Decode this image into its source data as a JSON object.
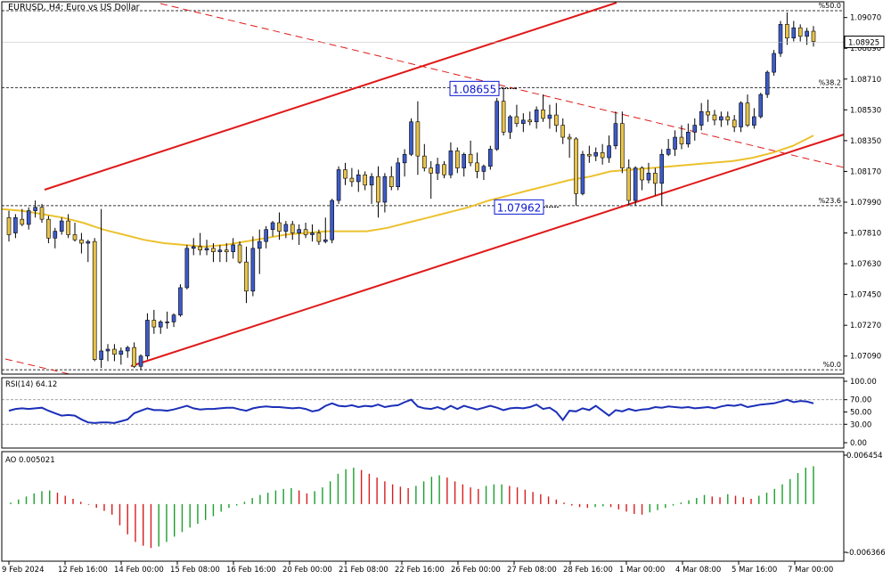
{
  "header": {
    "symbol": "EURUSD",
    "timeframe": "H4",
    "description": "Euro vs US Dollar",
    "full": "EURUSD, H4:  Euro vs US Dollar"
  },
  "colors": {
    "bull": "#3d5bc8",
    "bear": "#e8c34a",
    "ma": "#ecc12e",
    "channel": "#e01919",
    "rsi_line": "#1b2fb8",
    "ao_up": "#1a9e2c",
    "ao_down": "#d81c1c",
    "price_tag": "#0a15d0"
  },
  "chart_data": [
    {
      "type": "candlestick",
      "panel": "price",
      "ylim": [
        1.07,
        1.0911
      ],
      "y_ticks": [
        "1.09070",
        "1.08890",
        "1.08710",
        "1.08530",
        "1.08350",
        "1.08170",
        "1.07990",
        "1.07810",
        "1.07630",
        "1.07450",
        "1.07270",
        "1.07090"
      ],
      "x_labels": [
        "9 Feb 2024",
        "12 Feb 16:00",
        "14 Feb 00:00",
        "15 Feb 08:00",
        "16 Feb 16:00",
        "20 Feb 00:00",
        "21 Feb 08:00",
        "22 Feb 16:00",
        "26 Feb 00:00",
        "27 Feb 08:00",
        "28 Feb 16:00",
        "1 Mar 00:00",
        "4 Mar 08:00",
        "5 Mar 16:00",
        "7 Mar 00:00"
      ],
      "current_price": "1.08925",
      "fib_levels": [
        {
          "label": "%50.0",
          "value": 1.0911
        },
        {
          "label": "%38.2",
          "value": 1.0866
        },
        {
          "label": "%23.6",
          "value": 1.0797
        },
        {
          "label": "%0.0",
          "value": 1.0701
        }
      ],
      "annotations": [
        {
          "text": "1.08655",
          "value": 1.08655
        },
        {
          "text": "1.07962",
          "value": 1.07962
        }
      ],
      "ma_period_values": [
        1.0795,
        1.0794,
        1.0792,
        1.079,
        1.0787,
        1.0783,
        1.078,
        1.0777,
        1.0775,
        1.0774,
        1.0773,
        1.0774,
        1.0776,
        1.0778,
        1.078,
        1.0781,
        1.0782,
        1.0782,
        1.0782,
        1.0784,
        1.0787,
        1.079,
        1.0793,
        1.0796,
        1.08,
        1.0803,
        1.0806,
        1.0809,
        1.0812,
        1.0814,
        1.0817,
        1.0818,
        1.0819,
        1.082,
        1.0821,
        1.0822,
        1.0823,
        1.0825,
        1.0828,
        1.0832,
        1.0838
      ],
      "candles": [
        [
          1.079,
          1.0794,
          1.0776,
          1.078
        ],
        [
          1.0781,
          1.0792,
          1.0778,
          1.079
        ],
        [
          1.0789,
          1.0795,
          1.0785,
          1.0786
        ],
        [
          1.0786,
          1.0796,
          1.0783,
          1.0794
        ],
        [
          1.0794,
          1.08,
          1.079,
          1.0796
        ],
        [
          1.0796,
          1.0798,
          1.0787,
          1.0789
        ],
        [
          1.0789,
          1.0791,
          1.0775,
          1.0778
        ],
        [
          1.0778,
          1.0784,
          1.0772,
          1.0782
        ],
        [
          1.0782,
          1.079,
          1.078,
          1.0788
        ],
        [
          1.0788,
          1.0792,
          1.0778,
          1.078
        ],
        [
          1.078,
          1.0787,
          1.0776,
          1.0777
        ],
        [
          1.0777,
          1.0781,
          1.0769,
          1.0775
        ],
        [
          1.0775,
          1.0777,
          1.0764,
          1.0776
        ],
        [
          1.0776,
          1.0778,
          1.0706,
          1.0707
        ],
        [
          1.0707,
          1.0795,
          1.0702,
          1.0712
        ],
        [
          1.0712,
          1.0716,
          1.0706,
          1.0713
        ],
        [
          1.0713,
          1.0716,
          1.0706,
          1.071
        ],
        [
          1.071,
          1.0714,
          1.0704,
          1.0712
        ],
        [
          1.0712,
          1.0715,
          1.0708,
          1.0714
        ],
        [
          1.0714,
          1.0717,
          1.0702,
          1.0703
        ],
        [
          1.0703,
          1.071,
          1.0701,
          1.0709
        ],
        [
          1.0709,
          1.0734,
          1.0707,
          1.073
        ],
        [
          1.073,
          1.0736,
          1.0722,
          1.0726
        ],
        [
          1.0726,
          1.073,
          1.0722,
          1.0729
        ],
        [
          1.0729,
          1.0735,
          1.0725,
          1.0729
        ],
        [
          1.0729,
          1.0734,
          1.0726,
          1.0733
        ],
        [
          1.0733,
          1.0751,
          1.0732,
          1.0749
        ],
        [
          1.0749,
          1.0774,
          1.0748,
          1.0772
        ],
        [
          1.0772,
          1.0778,
          1.0768,
          1.0773
        ],
        [
          1.0773,
          1.0781,
          1.0768,
          1.0771
        ],
        [
          1.0771,
          1.0777,
          1.0768,
          1.0772
        ],
        [
          1.0772,
          1.0775,
          1.0764,
          1.077
        ],
        [
          1.077,
          1.0774,
          1.0764,
          1.0771
        ],
        [
          1.0771,
          1.0775,
          1.0764,
          1.077
        ],
        [
          1.077,
          1.0778,
          1.0766,
          1.0774
        ],
        [
          1.0774,
          1.0776,
          1.0763,
          1.0764
        ],
        [
          1.0764,
          1.0773,
          1.074,
          1.0747
        ],
        [
          1.0747,
          1.0779,
          1.0744,
          1.0772
        ],
        [
          1.0772,
          1.0783,
          1.0757,
          1.0776
        ],
        [
          1.0776,
          1.0785,
          1.0772,
          1.0783
        ],
        [
          1.0783,
          1.0788,
          1.0779,
          1.0787
        ],
        [
          1.0787,
          1.0793,
          1.0777,
          1.0782
        ],
        [
          1.0782,
          1.0788,
          1.0778,
          1.0786
        ],
        [
          1.0786,
          1.0788,
          1.0777,
          1.0781
        ],
        [
          1.0781,
          1.0786,
          1.0774,
          1.0783
        ],
        [
          1.0783,
          1.0787,
          1.0778,
          1.078
        ],
        [
          1.078,
          1.0786,
          1.0776,
          1.0781
        ],
        [
          1.0781,
          1.0783,
          1.0774,
          1.0776
        ],
        [
          1.0776,
          1.079,
          1.0775,
          1.0777
        ],
        [
          1.0777,
          1.0801,
          1.0775,
          1.08
        ],
        [
          1.08,
          1.082,
          1.0798,
          1.0818
        ],
        [
          1.0818,
          1.0822,
          1.0809,
          1.0813
        ],
        [
          1.0813,
          1.0819,
          1.0808,
          1.0811
        ],
        [
          1.0811,
          1.0818,
          1.0805,
          1.0815
        ],
        [
          1.0815,
          1.0817,
          1.0806,
          1.0809
        ],
        [
          1.0809,
          1.0816,
          1.0798,
          1.0814
        ],
        [
          1.0814,
          1.082,
          1.079,
          1.0799
        ],
        [
          1.0799,
          1.0816,
          1.0793,
          1.0814
        ],
        [
          1.0814,
          1.082,
          1.0806,
          1.0808
        ],
        [
          1.0808,
          1.0825,
          1.0806,
          1.0822
        ],
        [
          1.0822,
          1.083,
          1.0814,
          1.0827
        ],
        [
          1.0827,
          1.0848,
          1.0826,
          1.0846
        ],
        [
          1.0846,
          1.0858,
          1.0815,
          1.0826
        ],
        [
          1.0826,
          1.0833,
          1.0817,
          1.0819
        ],
        [
          1.0819,
          1.0823,
          1.0801,
          1.0816
        ],
        [
          1.0816,
          1.0825,
          1.0812,
          1.0821
        ],
        [
          1.0821,
          1.0823,
          1.0813,
          1.0815
        ],
        [
          1.0815,
          1.0834,
          1.0813,
          1.0829
        ],
        [
          1.0829,
          1.0831,
          1.0816,
          1.0819
        ],
        [
          1.0819,
          1.0828,
          1.0814,
          1.0827
        ],
        [
          1.0827,
          1.0835,
          1.082,
          1.0822
        ],
        [
          1.0822,
          1.0828,
          1.0813,
          1.0817
        ],
        [
          1.0817,
          1.0821,
          1.0812,
          1.082
        ],
        [
          1.082,
          1.0832,
          1.0818,
          1.083
        ],
        [
          1.083,
          1.086,
          1.0829,
          1.0858
        ],
        [
          1.0858,
          1.0866,
          1.0838,
          1.084
        ],
        [
          1.084,
          1.085,
          1.0836,
          1.0849
        ],
        [
          1.0849,
          1.0856,
          1.0843,
          1.0845
        ],
        [
          1.0845,
          1.0851,
          1.084,
          1.0847
        ],
        [
          1.0847,
          1.0852,
          1.0844,
          1.0846
        ],
        [
          1.0846,
          1.0855,
          1.0842,
          1.0853
        ],
        [
          1.0853,
          1.0862,
          1.0846,
          1.0848
        ],
        [
          1.0848,
          1.0856,
          1.0842,
          1.085
        ],
        [
          1.085,
          1.0857,
          1.084,
          1.0844
        ],
        [
          1.0844,
          1.0848,
          1.0833,
          1.0837
        ],
        [
          1.0837,
          1.0839,
          1.0825,
          1.0836
        ],
        [
          1.0836,
          1.0837,
          1.0797,
          1.0804
        ],
        [
          1.0804,
          1.0829,
          1.0803,
          1.0827
        ],
        [
          1.0827,
          1.0832,
          1.0822,
          1.0826
        ],
        [
          1.0826,
          1.0831,
          1.0823,
          1.0828
        ],
        [
          1.0828,
          1.0833,
          1.0821,
          1.0825
        ],
        [
          1.0825,
          1.0838,
          1.0822,
          1.0832
        ],
        [
          1.0832,
          1.0852,
          1.083,
          1.0845
        ],
        [
          1.0845,
          1.0852,
          1.0816,
          1.0819
        ],
        [
          1.0819,
          1.0824,
          1.0797,
          1.08
        ],
        [
          1.08,
          1.082,
          1.0797,
          1.0819
        ],
        [
          1.0819,
          1.082,
          1.0806,
          1.0812
        ],
        [
          1.0812,
          1.0822,
          1.081,
          1.0816
        ],
        [
          1.0816,
          1.0819,
          1.0803,
          1.081
        ],
        [
          1.081,
          1.083,
          1.0797,
          1.0827
        ],
        [
          1.0827,
          1.0836,
          1.0826,
          1.083
        ],
        [
          1.083,
          1.0841,
          1.0826,
          1.0837
        ],
        [
          1.0837,
          1.0844,
          1.083,
          1.0833
        ],
        [
          1.0833,
          1.0845,
          1.0831,
          1.084
        ],
        [
          1.084,
          1.0848,
          1.0835,
          1.0844
        ],
        [
          1.0844,
          1.0857,
          1.0841,
          1.0852
        ],
        [
          1.0852,
          1.0859,
          1.0846,
          1.085
        ],
        [
          1.085,
          1.0853,
          1.0844,
          1.0847
        ],
        [
          1.0847,
          1.0852,
          1.0843,
          1.0849
        ],
        [
          1.0849,
          1.0852,
          1.0844,
          1.0847
        ],
        [
          1.0847,
          1.085,
          1.084,
          1.0843
        ],
        [
          1.0843,
          1.0858,
          1.084,
          1.0857
        ],
        [
          1.0857,
          1.0862,
          1.0843,
          1.0844
        ],
        [
          1.0844,
          1.0854,
          1.0842,
          1.0849
        ],
        [
          1.0849,
          1.0863,
          1.0848,
          1.0862
        ],
        [
          1.0862,
          1.0876,
          1.086,
          1.0875
        ],
        [
          1.0875,
          1.0888,
          1.0873,
          1.0886
        ],
        [
          1.0886,
          1.0905,
          1.0884,
          1.0903
        ],
        [
          1.0903,
          1.091,
          1.0891,
          1.0895
        ],
        [
          1.0895,
          1.0905,
          1.0893,
          1.0901
        ],
        [
          1.0901,
          1.0903,
          1.0893,
          1.0896
        ],
        [
          1.0896,
          1.0901,
          1.0891,
          1.0899
        ],
        [
          1.0899,
          1.0902,
          1.089,
          1.0893
        ]
      ]
    },
    {
      "type": "line",
      "panel": "rsi",
      "title": "RSI(14) 64.12",
      "ylim": [
        0,
        100
      ],
      "y_ticks": [
        "100.00",
        "70.00",
        "50.00",
        "30.00",
        "0.00"
      ],
      "values": [
        52,
        55,
        56,
        55,
        56,
        57,
        52,
        48,
        44,
        45,
        44,
        38,
        33,
        32,
        33,
        33,
        32,
        35,
        38,
        48,
        52,
        56,
        53,
        53,
        52,
        54,
        57,
        60,
        56,
        54,
        55,
        55,
        56,
        57,
        57,
        54,
        52,
        56,
        58,
        59,
        58,
        58,
        57,
        56,
        57,
        55,
        51,
        53,
        60,
        64,
        60,
        59,
        61,
        58,
        60,
        59,
        62,
        58,
        60,
        61,
        66,
        70,
        59,
        56,
        55,
        58,
        54,
        60,
        55,
        60,
        57,
        54,
        57,
        60,
        57,
        53,
        56,
        57,
        56,
        58,
        62,
        55,
        57,
        50,
        37,
        52,
        51,
        56,
        53,
        60,
        52,
        44,
        53,
        51,
        55,
        52,
        54,
        55,
        58,
        57,
        59,
        58,
        57,
        58,
        56,
        57,
        58,
        56,
        59,
        61,
        60,
        62,
        58,
        60,
        62,
        63,
        64,
        67,
        70,
        66,
        68,
        67,
        64
      ]
    },
    {
      "type": "bar",
      "panel": "ao",
      "title": "AO 0.005021",
      "ylim": [
        -0.006366,
        0.006454
      ],
      "y_ticks": [
        "0.006454",
        "-0.006366"
      ],
      "values": [
        0.0002,
        0.0006,
        0.001,
        0.0014,
        0.0017,
        0.0018,
        0.0015,
        0.0011,
        0.0007,
        0.0003,
        -0.0001,
        -0.0005,
        -0.0009,
        -0.0014,
        -0.0028,
        -0.004,
        -0.005,
        -0.0055,
        -0.0058,
        -0.0056,
        -0.005,
        -0.0043,
        -0.0037,
        -0.0031,
        -0.0026,
        -0.0021,
        -0.0016,
        -0.001,
        -0.0005,
        -0.0002,
        0.0003,
        0.0008,
        0.0012,
        0.0015,
        0.0018,
        0.002,
        0.0021,
        0.0018,
        0.0014,
        0.0017,
        0.0022,
        0.003,
        0.004,
        0.0046,
        0.0048,
        0.0045,
        0.004,
        0.0035,
        0.003,
        0.0026,
        0.0023,
        0.0021,
        0.0024,
        0.003,
        0.0036,
        0.0038,
        0.0035,
        0.003,
        0.0026,
        0.0022,
        0.002,
        0.0024,
        0.0026,
        0.0026,
        0.0024,
        0.0022,
        0.0019,
        0.0016,
        0.0013,
        0.001,
        0.0006,
        0.0002,
        -0.0002,
        -0.0004,
        -0.0005,
        -0.0004,
        -0.0003,
        -0.0004,
        -0.0007,
        -0.001,
        -0.0013,
        -0.0014,
        -0.0011,
        -0.0008,
        -0.0005,
        -0.0002,
        0.0002,
        0.0005,
        0.0008,
        0.0012,
        0.001,
        0.0009,
        0.0013,
        0.0011,
        0.0009,
        0.0007,
        0.0011,
        0.0015,
        0.002,
        0.0026,
        0.0033,
        0.0041,
        0.0048,
        0.005
      ]
    }
  ]
}
